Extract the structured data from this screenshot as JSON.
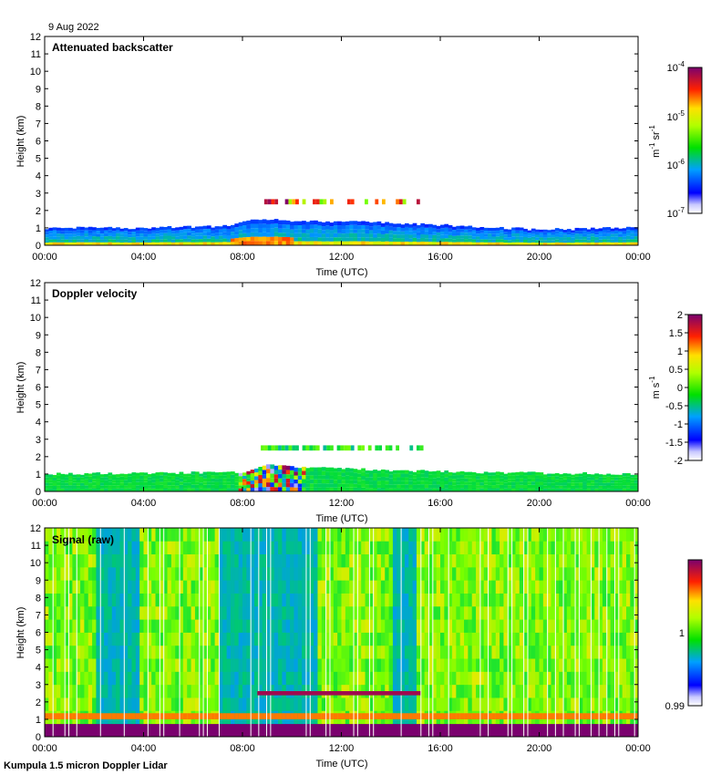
{
  "date_label": "9 Aug 2022",
  "footer": "Kumpula 1.5 micron Doppler Lidar",
  "chart_data": [
    {
      "type": "heatmap",
      "title": "Attenuated backscatter",
      "xlabel": "Time (UTC)",
      "ylabel": "Height (km)",
      "xticks": [
        "00:00",
        "04:00",
        "08:00",
        "12:00",
        "16:00",
        "20:00",
        "00:00"
      ],
      "xlim": [
        0,
        24
      ],
      "ylim": [
        0,
        12
      ],
      "yticks": [
        "0",
        "1",
        "2",
        "3",
        "4",
        "5",
        "6",
        "7",
        "8",
        "9",
        "10",
        "11",
        "12"
      ],
      "colorbar": {
        "label_base": "m",
        "label_exp1": "-1",
        "label_mid": " sr",
        "label_exp2": "-1",
        "scale": "log",
        "range": [
          1e-07,
          0.0001
        ],
        "ticks": [
          {
            "value": 0.0001,
            "base": "10",
            "exp": "-4"
          },
          {
            "value": 1e-05,
            "base": "10",
            "exp": "-5"
          },
          {
            "value": 1e-06,
            "base": "10",
            "exp": "-6"
          },
          {
            "value": 1e-07,
            "base": "10",
            "exp": "-7"
          }
        ]
      },
      "features": {
        "boundary_layer_top_km": [
          {
            "t": 0,
            "h": 1.0
          },
          {
            "t": 4,
            "h": 1.0
          },
          {
            "t": 7.5,
            "h": 1.1
          },
          {
            "t": 8.5,
            "h": 1.5
          },
          {
            "t": 10,
            "h": 1.4
          },
          {
            "t": 14,
            "h": 1.3
          },
          {
            "t": 17,
            "h": 1.1
          },
          {
            "t": 20,
            "h": 0.9
          },
          {
            "t": 24,
            "h": 1.0
          }
        ],
        "cloud_layer": {
          "t_start": 8.6,
          "t_end": 15.2,
          "height_km": 2.5
        }
      }
    },
    {
      "type": "heatmap",
      "title": "Doppler velocity",
      "xlabel": "Time (UTC)",
      "ylabel": "Height (km)",
      "xticks": [
        "00:00",
        "04:00",
        "08:00",
        "12:00",
        "16:00",
        "20:00",
        "00:00"
      ],
      "xlim": [
        0,
        24
      ],
      "ylim": [
        0,
        12
      ],
      "yticks": [
        "0",
        "1",
        "2",
        "3",
        "4",
        "5",
        "6",
        "7",
        "8",
        "9",
        "10",
        "11",
        "12"
      ],
      "colorbar": {
        "label_base": "m s",
        "label_exp": "-1",
        "scale": "linear",
        "range": [
          -2,
          2
        ],
        "ticks": [
          "2",
          "1.5",
          "1",
          "0.5",
          "0",
          "-0.5",
          "-1",
          "-1.5",
          "-2"
        ]
      },
      "features": {
        "boundary_layer_top_km": [
          {
            "t": 0,
            "h": 1.0
          },
          {
            "t": 8,
            "h": 1.1
          },
          {
            "t": 9,
            "h": 1.5
          },
          {
            "t": 12,
            "h": 1.3
          },
          {
            "t": 17,
            "h": 1.1
          },
          {
            "t": 24,
            "h": 1.0
          }
        ],
        "cloud_layer": {
          "t_start": 8.6,
          "t_end": 15.2,
          "height_km": 2.5
        }
      }
    },
    {
      "type": "heatmap",
      "title": "Signal (raw)",
      "xlabel": "Time (UTC)",
      "ylabel": "Height (km)",
      "xticks": [
        "00:00",
        "04:00",
        "08:00",
        "12:00",
        "16:00",
        "20:00",
        "00:00"
      ],
      "xlim": [
        0,
        24
      ],
      "ylim": [
        0,
        12
      ],
      "yticks": [
        "0",
        "1",
        "2",
        "3",
        "4",
        "5",
        "6",
        "7",
        "8",
        "9",
        "10",
        "11",
        "12"
      ],
      "colorbar": {
        "scale": "linear",
        "range": [
          0.99,
          1.01
        ],
        "ticks": [
          "1",
          "0.99"
        ]
      },
      "features": {
        "low_signal_bands_hours": [
          [
            2.0,
            3.8
          ],
          [
            7.0,
            11.0
          ],
          [
            14.0,
            15.0
          ]
        ],
        "surface_layer_top_km": 1.0,
        "cloud_layer": {
          "t_start": 8.6,
          "t_end": 15.2,
          "height_km": 2.5
        }
      }
    }
  ]
}
